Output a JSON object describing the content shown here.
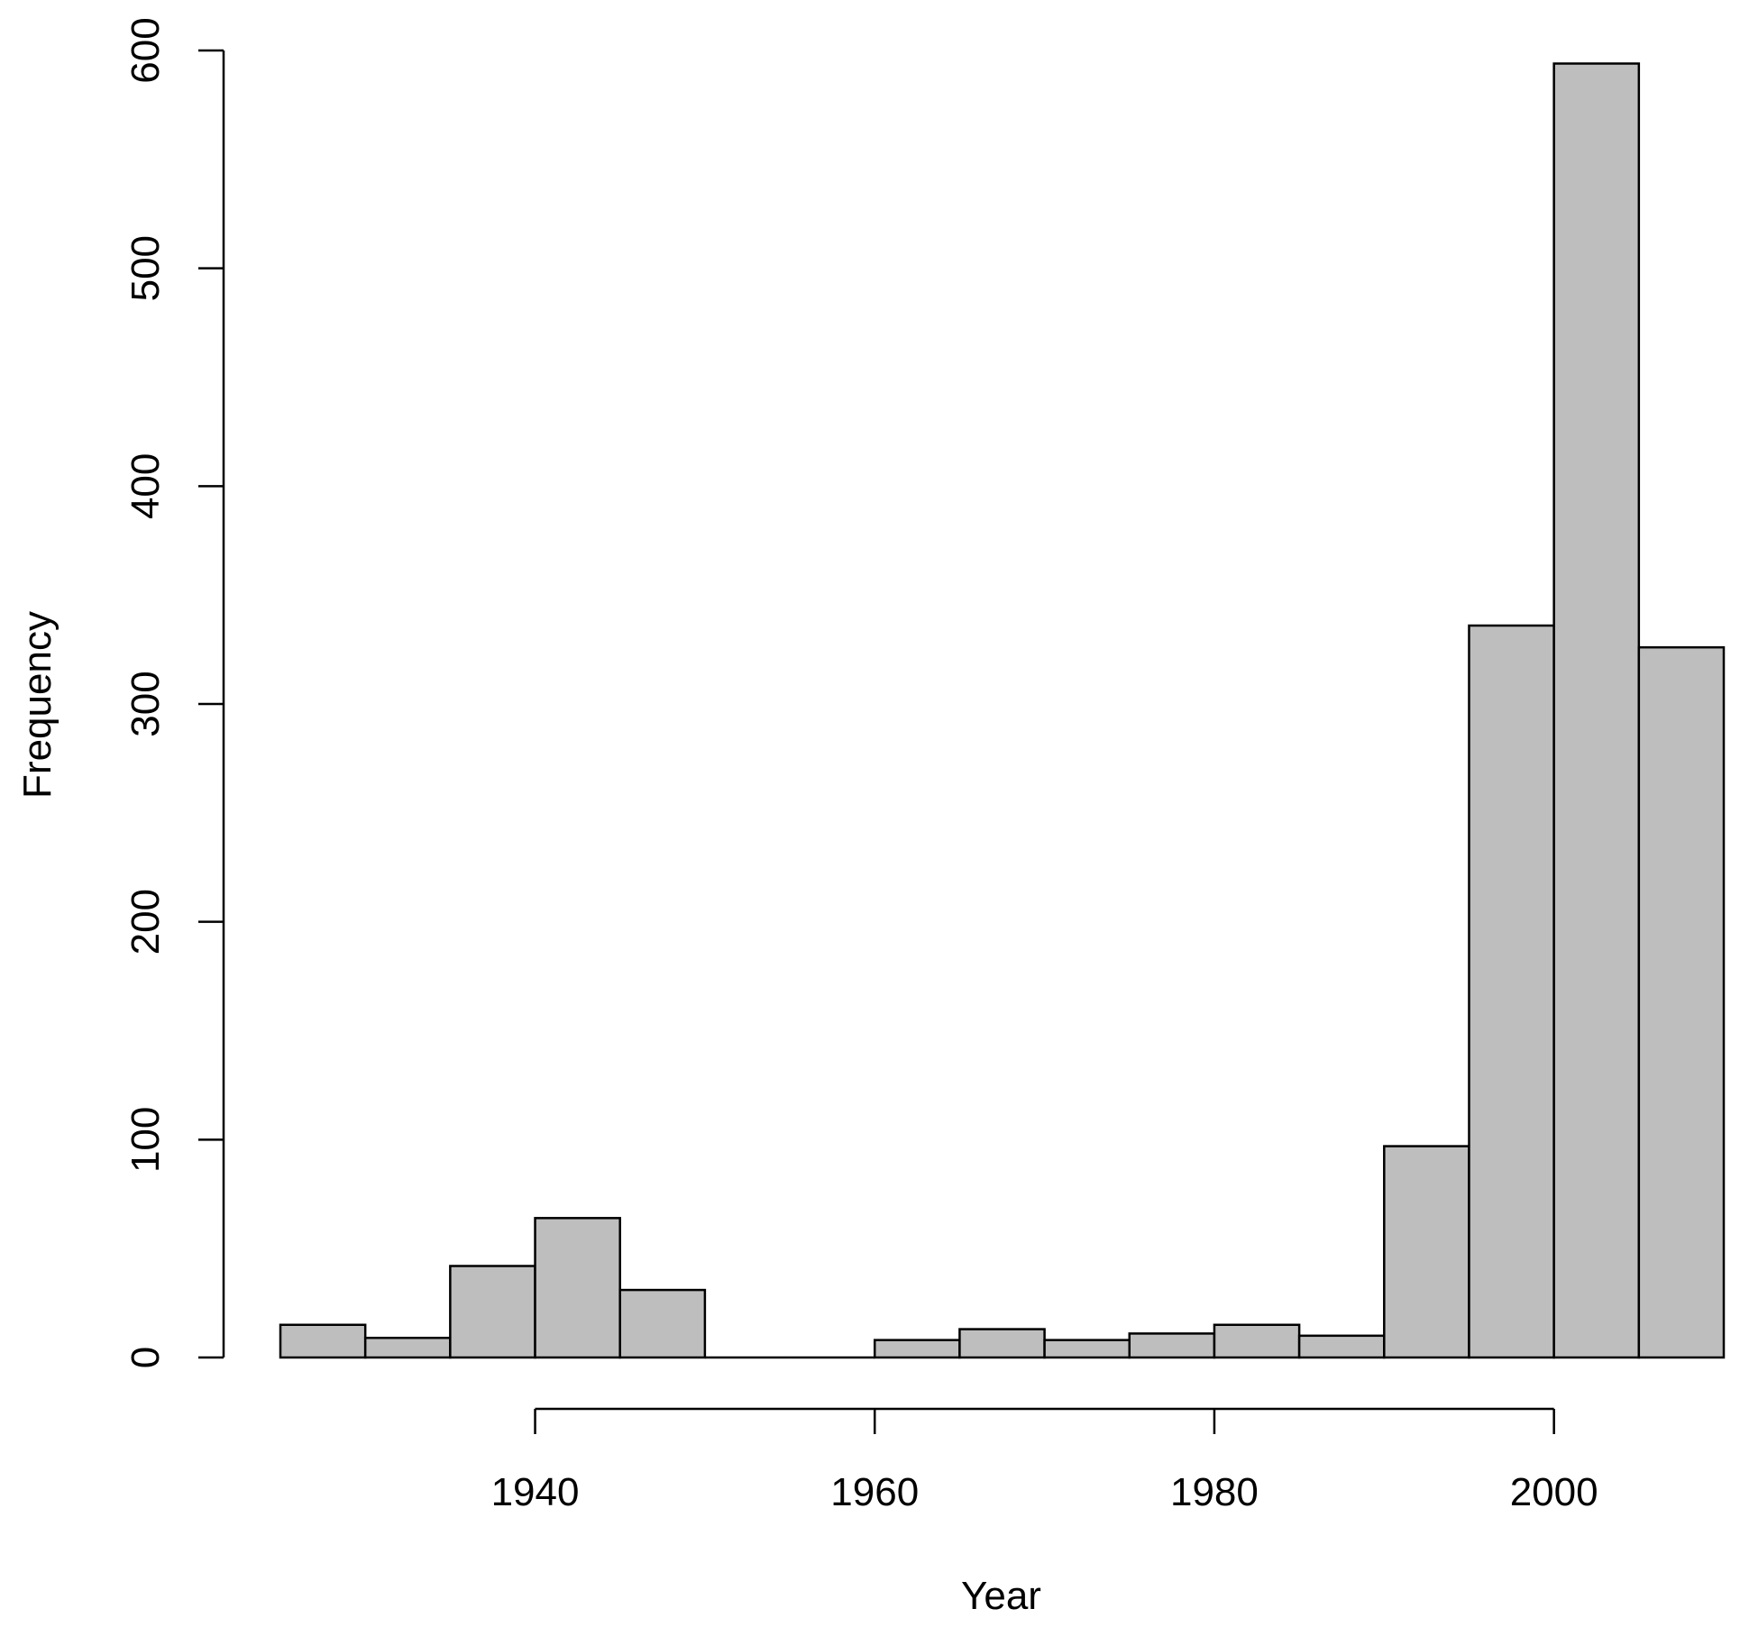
{
  "chart_data": {
    "type": "bar",
    "subtype": "histogram",
    "title": "",
    "xlabel": "Year",
    "ylabel": "Frequency",
    "bin_width": 5,
    "bins": [
      {
        "start": 1925,
        "end": 1930,
        "count": 15
      },
      {
        "start": 1930,
        "end": 1935,
        "count": 9
      },
      {
        "start": 1935,
        "end": 1940,
        "count": 42
      },
      {
        "start": 1940,
        "end": 1945,
        "count": 64
      },
      {
        "start": 1945,
        "end": 1950,
        "count": 31
      },
      {
        "start": 1950,
        "end": 1955,
        "count": 0
      },
      {
        "start": 1955,
        "end": 1960,
        "count": 0
      },
      {
        "start": 1960,
        "end": 1965,
        "count": 8
      },
      {
        "start": 1965,
        "end": 1970,
        "count": 13
      },
      {
        "start": 1970,
        "end": 1975,
        "count": 8
      },
      {
        "start": 1975,
        "end": 1980,
        "count": 11
      },
      {
        "start": 1980,
        "end": 1985,
        "count": 15
      },
      {
        "start": 1985,
        "end": 1990,
        "count": 10
      },
      {
        "start": 1990,
        "end": 1995,
        "count": 97
      },
      {
        "start": 1995,
        "end": 2000,
        "count": 336
      },
      {
        "start": 2000,
        "end": 2005,
        "count": 594
      },
      {
        "start": 2005,
        "end": 2010,
        "count": 326
      }
    ],
    "xlim": [
      1925,
      2010
    ],
    "ylim": [
      0,
      600
    ],
    "x_axis_range": [
      1940,
      2000
    ],
    "x_ticks": [
      1940,
      1960,
      1980,
      2000
    ],
    "x_tick_labels": [
      "1940",
      "1960",
      "1980",
      "2000"
    ],
    "y_ticks": [
      0,
      100,
      200,
      300,
      400,
      500,
      600
    ],
    "y_tick_labels": [
      "0",
      "100",
      "200",
      "300",
      "400",
      "500",
      "600"
    ],
    "grid": false,
    "legend": "none",
    "bar_color": "#bebebe",
    "edge_color": "#000000"
  }
}
